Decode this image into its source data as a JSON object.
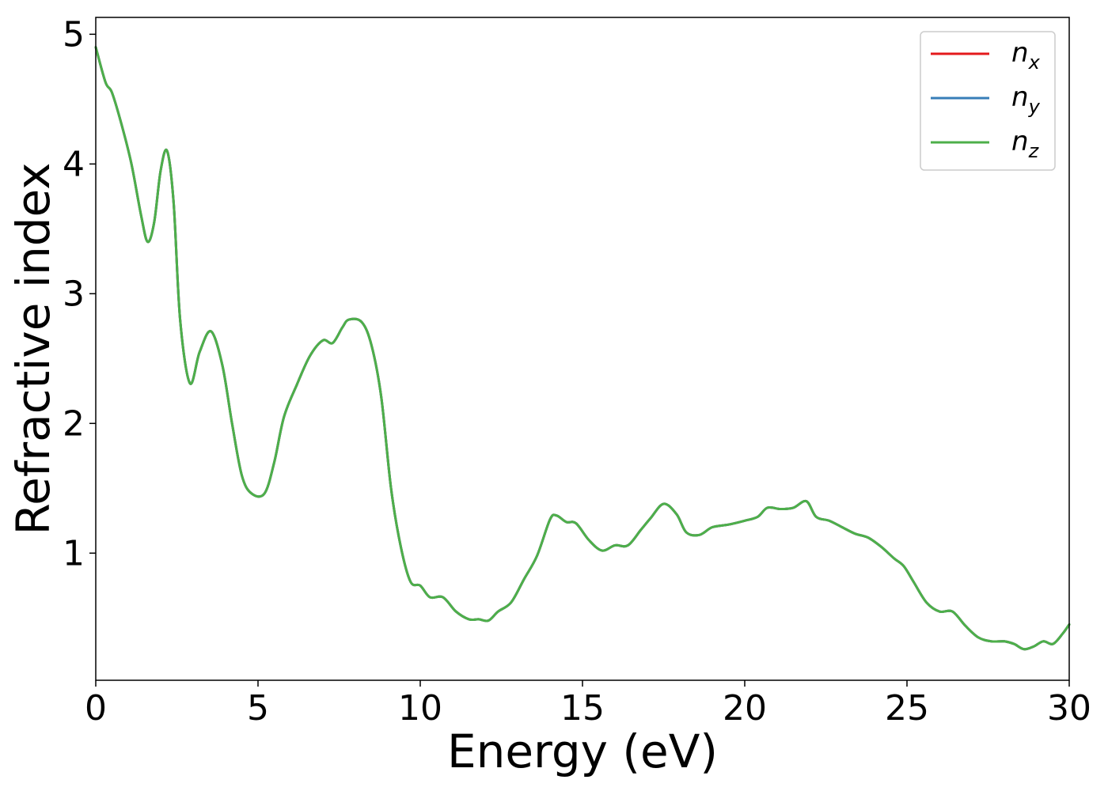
{
  "chart_data": {
    "type": "line",
    "title": "",
    "xlabel": "Energy (eV)",
    "ylabel": "Refractive index",
    "xlim": [
      0,
      30
    ],
    "ylim": [
      0.02,
      5.13
    ],
    "xticks": [
      0,
      5,
      10,
      15,
      20,
      25,
      30
    ],
    "yticks": [
      1,
      2,
      3,
      4,
      5
    ],
    "grid": false,
    "legend": {
      "placement": "top-right",
      "entries": [
        {
          "base": "n",
          "sub": "x",
          "color": "#e41a1c"
        },
        {
          "base": "n",
          "sub": "y",
          "color": "#377eb8"
        },
        {
          "base": "n",
          "sub": "z",
          "color": "#4daf4a"
        }
      ]
    },
    "x": [
      0,
      0.3,
      0.5,
      0.8,
      1.1,
      1.4,
      1.6,
      1.8,
      2.0,
      2.2,
      2.4,
      2.6,
      2.9,
      3.2,
      3.55,
      3.9,
      4.2,
      4.5,
      4.8,
      5.2,
      5.5,
      5.8,
      6.2,
      6.6,
      7.0,
      7.3,
      7.6,
      7.8,
      8.2,
      8.5,
      8.8,
      9.1,
      9.4,
      9.7,
      10.0,
      10.3,
      10.7,
      11.1,
      11.5,
      11.8,
      12.1,
      12.4,
      12.8,
      13.2,
      13.6,
      14.0,
      14.2,
      14.5,
      14.8,
      15.2,
      15.6,
      16.0,
      16.4,
      16.8,
      17.1,
      17.5,
      17.9,
      18.2,
      18.6,
      19.0,
      19.5,
      20.0,
      20.4,
      20.7,
      21.1,
      21.5,
      21.9,
      22.2,
      22.6,
      23.0,
      23.4,
      23.8,
      24.2,
      24.6,
      24.9,
      25.2,
      25.6,
      26.0,
      26.4,
      26.8,
      27.2,
      27.6,
      28.0,
      28.3,
      28.6,
      28.9,
      29.2,
      29.5,
      29.8,
      30.0
    ],
    "series": [
      {
        "name": "n_x",
        "color": "#e41a1c",
        "values": [
          4.9,
          4.63,
          4.55,
          4.3,
          4.0,
          3.6,
          3.4,
          3.55,
          3.95,
          4.1,
          3.7,
          2.8,
          2.31,
          2.55,
          2.71,
          2.45,
          2.0,
          1.6,
          1.46,
          1.46,
          1.7,
          2.05,
          2.3,
          2.52,
          2.64,
          2.62,
          2.74,
          2.8,
          2.78,
          2.6,
          2.2,
          1.5,
          1.05,
          0.78,
          0.75,
          0.66,
          0.66,
          0.55,
          0.49,
          0.49,
          0.48,
          0.55,
          0.62,
          0.8,
          0.98,
          1.26,
          1.29,
          1.24,
          1.23,
          1.1,
          1.02,
          1.06,
          1.06,
          1.18,
          1.27,
          1.38,
          1.3,
          1.16,
          1.14,
          1.2,
          1.22,
          1.25,
          1.28,
          1.35,
          1.34,
          1.35,
          1.4,
          1.28,
          1.25,
          1.2,
          1.15,
          1.12,
          1.05,
          0.96,
          0.9,
          0.78,
          0.62,
          0.55,
          0.55,
          0.44,
          0.35,
          0.32,
          0.32,
          0.3,
          0.26,
          0.28,
          0.32,
          0.3,
          0.38,
          0.45
        ]
      },
      {
        "name": "n_y",
        "color": "#377eb8",
        "values": [
          4.9,
          4.63,
          4.55,
          4.3,
          4.0,
          3.6,
          3.4,
          3.55,
          3.95,
          4.1,
          3.7,
          2.8,
          2.31,
          2.55,
          2.71,
          2.45,
          2.0,
          1.6,
          1.46,
          1.46,
          1.7,
          2.05,
          2.3,
          2.52,
          2.64,
          2.62,
          2.74,
          2.8,
          2.78,
          2.6,
          2.2,
          1.5,
          1.05,
          0.78,
          0.75,
          0.66,
          0.66,
          0.55,
          0.49,
          0.49,
          0.48,
          0.55,
          0.62,
          0.8,
          0.98,
          1.26,
          1.29,
          1.24,
          1.23,
          1.1,
          1.02,
          1.06,
          1.06,
          1.18,
          1.27,
          1.38,
          1.3,
          1.16,
          1.14,
          1.2,
          1.22,
          1.25,
          1.28,
          1.35,
          1.34,
          1.35,
          1.4,
          1.28,
          1.25,
          1.2,
          1.15,
          1.12,
          1.05,
          0.96,
          0.9,
          0.78,
          0.62,
          0.55,
          0.55,
          0.44,
          0.35,
          0.32,
          0.32,
          0.3,
          0.26,
          0.28,
          0.32,
          0.3,
          0.38,
          0.45
        ]
      },
      {
        "name": "n_z",
        "color": "#4daf4a",
        "values": [
          4.9,
          4.63,
          4.55,
          4.3,
          4.0,
          3.6,
          3.4,
          3.55,
          3.95,
          4.1,
          3.7,
          2.8,
          2.31,
          2.55,
          2.71,
          2.45,
          2.0,
          1.6,
          1.46,
          1.46,
          1.7,
          2.05,
          2.3,
          2.52,
          2.64,
          2.62,
          2.74,
          2.8,
          2.78,
          2.6,
          2.2,
          1.5,
          1.05,
          0.78,
          0.75,
          0.66,
          0.66,
          0.55,
          0.49,
          0.49,
          0.48,
          0.55,
          0.62,
          0.8,
          0.98,
          1.26,
          1.29,
          1.24,
          1.23,
          1.1,
          1.02,
          1.06,
          1.06,
          1.18,
          1.27,
          1.38,
          1.3,
          1.16,
          1.14,
          1.2,
          1.22,
          1.25,
          1.28,
          1.35,
          1.34,
          1.35,
          1.4,
          1.28,
          1.25,
          1.2,
          1.15,
          1.12,
          1.05,
          0.96,
          0.9,
          0.78,
          0.62,
          0.55,
          0.55,
          0.44,
          0.35,
          0.32,
          0.32,
          0.3,
          0.26,
          0.28,
          0.32,
          0.3,
          0.38,
          0.45
        ]
      }
    ]
  }
}
